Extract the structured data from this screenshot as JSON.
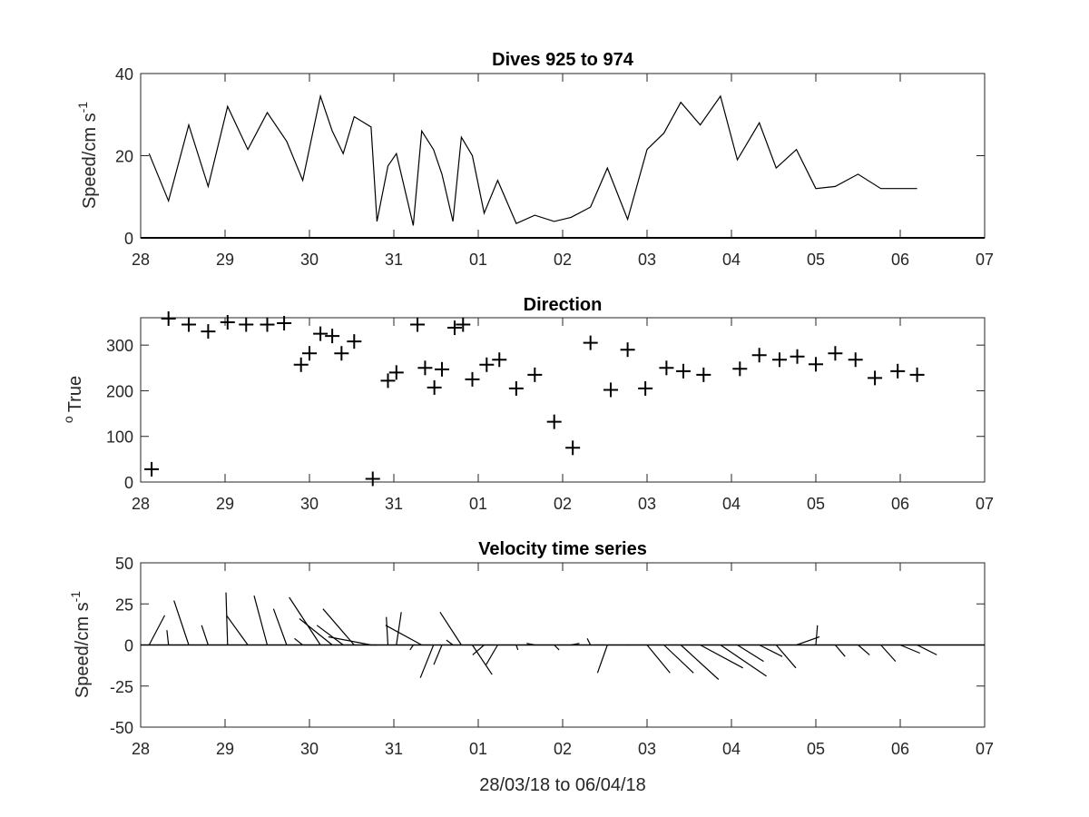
{
  "chart_data": [
    {
      "type": "line",
      "title": "Dives 925 to 974",
      "ylabel": "Speed/cm s",
      "ylabel_superscript": "-1",
      "xlim": [
        28,
        38
      ],
      "ylim": [
        0,
        40
      ],
      "x_ticks": [
        "28",
        "29",
        "30",
        "31",
        "01",
        "02",
        "03",
        "04",
        "05",
        "06",
        "07"
      ],
      "y_ticks": [
        "0",
        "20",
        "40"
      ],
      "grid": false,
      "series": [
        {
          "color": "#000000",
          "x": [
            28.1,
            28.33,
            28.57,
            28.8,
            29.03,
            29.27,
            29.5,
            29.73,
            29.92,
            30.13,
            30.27,
            30.4,
            30.53,
            30.73,
            30.8,
            30.93,
            31.03,
            31.23,
            31.33,
            31.47,
            31.57,
            31.7,
            31.8,
            31.93,
            32.07,
            32.23,
            32.45,
            32.67,
            32.9,
            33.1,
            33.33,
            33.53,
            33.77,
            34.0,
            34.2,
            34.4,
            34.63,
            34.87,
            35.07,
            35.33,
            35.53,
            35.77,
            36.0,
            36.23,
            36.5,
            36.77,
            37.0,
            37.2
          ],
          "y": [
            20.5,
            9,
            27.5,
            12.5,
            32,
            21.5,
            30.5,
            23.5,
            14,
            34.5,
            26,
            20.5,
            29.5,
            27,
            4,
            17.5,
            20.5,
            3,
            26,
            21.5,
            15.5,
            4,
            24.5,
            20,
            6,
            14,
            3.5,
            5.5,
            4,
            5,
            7.5,
            17,
            4.5,
            21.5,
            25.5,
            33,
            27.5,
            34.5,
            19,
            28,
            17,
            21.5,
            12,
            12.5,
            15.5,
            12,
            12,
            12
          ]
        }
      ]
    },
    {
      "type": "scatter",
      "title": "Direction",
      "ylabel": "True",
      "ylabel_prefix_superscript": "o",
      "xlim": [
        28,
        38
      ],
      "ylim": [
        0,
        360
      ],
      "x_ticks": [
        "28",
        "29",
        "30",
        "31",
        "01",
        "02",
        "03",
        "04",
        "05",
        "06",
        "07"
      ],
      "y_ticks": [
        "0",
        "100",
        "200",
        "300"
      ],
      "grid": false,
      "marker": "+",
      "series": [
        {
          "color": "#000000",
          "x": [
            28.13,
            28.33,
            28.57,
            28.8,
            29.03,
            29.25,
            29.5,
            29.7,
            29.9,
            30.0,
            30.13,
            30.27,
            30.38,
            30.53,
            30.75,
            30.93,
            31.03,
            31.28,
            31.37,
            31.48,
            31.57,
            31.72,
            31.82,
            31.93,
            32.1,
            32.25,
            32.45,
            32.67,
            32.9,
            33.12,
            33.33,
            33.57,
            33.77,
            33.98,
            34.23,
            34.43,
            34.67,
            35.1,
            35.33,
            35.57,
            35.78,
            36.0,
            36.23,
            36.47,
            36.7,
            36.97,
            37.2
          ],
          "y": [
            28,
            358,
            345,
            330,
            350,
            345,
            345,
            348,
            257,
            282,
            325,
            320,
            282,
            308,
            7,
            222,
            240,
            345,
            250,
            207,
            247,
            338,
            345,
            225,
            257,
            268,
            205,
            235,
            132,
            75,
            305,
            202,
            290,
            205,
            250,
            243,
            235,
            248,
            278,
            268,
            275,
            258,
            282,
            268,
            228,
            243,
            235
          ]
        }
      ]
    },
    {
      "type": "quiver",
      "title": "Velocity time series",
      "ylabel": "Speed/cm s",
      "ylabel_superscript": "-1",
      "xlabel": "28/03/18 to 06/04/18",
      "xlim": [
        28,
        38
      ],
      "ylim": [
        -50,
        50
      ],
      "x_ticks": [
        "28",
        "29",
        "30",
        "31",
        "01",
        "02",
        "03",
        "04",
        "05",
        "06",
        "07"
      ],
      "y_ticks": [
        "-50",
        "-25",
        "0",
        "25",
        "50"
      ],
      "grid": false,
      "base_x": [
        28.1,
        28.33,
        28.57,
        28.8,
        29.03,
        29.27,
        29.5,
        29.73,
        29.92,
        30.13,
        30.27,
        30.4,
        30.53,
        30.73,
        30.8,
        30.93,
        31.03,
        31.23,
        31.33,
        31.47,
        31.57,
        31.7,
        31.8,
        31.93,
        32.07,
        32.23,
        32.45,
        32.67,
        32.9,
        33.1,
        33.33,
        33.53,
        33.77,
        34.0,
        34.2,
        34.4,
        34.63,
        34.87,
        35.07,
        35.33,
        35.53,
        35.77,
        36.0,
        36.23,
        36.5,
        36.77,
        37.0,
        37.2
      ],
      "u": [
        9.5,
        -1,
        -9,
        -4,
        -1,
        -13,
        -8,
        -8,
        -5,
        -19,
        -20,
        -16,
        -19,
        -26,
        -4,
        -1,
        3,
        -2,
        -22,
        -8,
        -5,
        -4,
        -13,
        12,
        -7,
        -7,
        1,
        -5,
        3,
        5,
        -2,
        -6,
        1,
        14,
        18,
        23,
        26,
        28,
        16,
        14,
        12,
        14,
        1,
        6,
        7,
        9,
        12,
        12
      ],
      "v": [
        18,
        9,
        27,
        12,
        32,
        18,
        30,
        22,
        4,
        29,
        16,
        12,
        22,
        5,
        0,
        17,
        20,
        -3,
        12,
        -20,
        -12,
        3,
        20,
        -18,
        -6,
        -12,
        -3,
        1,
        -3,
        1,
        4,
        -17,
        0,
        -17,
        -17,
        -21,
        -14,
        -19,
        -10,
        -7,
        -14,
        5,
        12,
        -7,
        -6,
        -10,
        -5,
        -6
      ]
    }
  ]
}
